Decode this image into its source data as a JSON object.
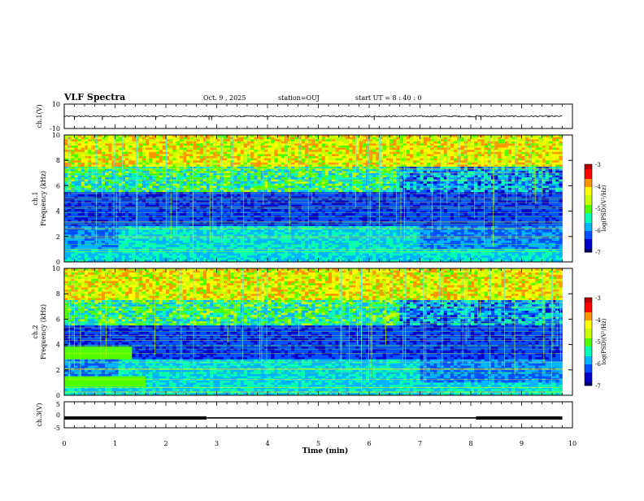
{
  "header": {
    "title": "VLF Spectra",
    "date": "Oct. 9 , 2025",
    "station": "station=OUJ",
    "start": "start UT = 8 : 40 : 0"
  },
  "colors": {
    "axis": "#000000",
    "trace": "#000000",
    "colormap": [
      "#00006e",
      "#0000c8",
      "#0050ff",
      "#00b4ff",
      "#00ffb4",
      "#50ff00",
      "#c8ff00",
      "#ffff00",
      "#ff9600",
      "#ff0000",
      "#b40000"
    ]
  },
  "chart_data": [
    {
      "type": "line",
      "name": "ch1-waveform",
      "ylabel": "ch.1(V)",
      "ylim": [
        -10,
        10
      ],
      "y_tick_labels": [
        "10",
        "-10"
      ],
      "x_range": [
        0,
        10
      ],
      "trace": {
        "baseline": 0,
        "noise_amplitude": 0.6,
        "spikes": [
          0.2,
          0.75,
          1.8,
          2.85,
          2.9,
          4.0,
          6.1,
          8.1,
          8.2
        ],
        "spike_depth": -3.0,
        "data_end": 9.8
      }
    },
    {
      "type": "heatmap",
      "name": "ch1-spectrogram",
      "ylabel": "ch.1\nFrequency (kHz)",
      "xlim": [
        0,
        10
      ],
      "ylim": [
        0,
        10
      ],
      "y_tick_labels": [
        "0",
        "2",
        "4",
        "6",
        "8",
        "10"
      ],
      "colorbar": {
        "label": "log(PSD)(V²/Hz)",
        "range": [
          -7,
          -3
        ],
        "tick_labels": [
          "-3",
          "-4",
          "-5",
          "-6",
          "-7"
        ]
      },
      "data_end_min": 9.8
    },
    {
      "type": "heatmap",
      "name": "ch2-spectrogram",
      "ylabel": "ch.2\nFrequency (kHz)",
      "xlim": [
        0,
        10
      ],
      "ylim": [
        0,
        10
      ],
      "y_tick_labels": [
        "0",
        "2",
        "4",
        "6",
        "8",
        "10"
      ],
      "colorbar": {
        "label": "log(PSD)(V²/Hz)",
        "range": [
          -7,
          -3
        ],
        "tick_labels": [
          "-3",
          "-4",
          "-5",
          "-6",
          "-7"
        ]
      },
      "data_end_min": 9.8
    },
    {
      "type": "line",
      "name": "ch3-level",
      "ylabel": "ch.3(V)",
      "ylim": [
        -5,
        5
      ],
      "y_tick_labels": [
        "5",
        "0",
        "-5"
      ],
      "segments": [
        {
          "x0": 0.0,
          "x1": 2.8,
          "y": -1.2,
          "thick": true
        },
        {
          "x0": 2.8,
          "x1": 8.1,
          "y": -1.2,
          "thick": false
        },
        {
          "x0": 8.1,
          "x1": 9.8,
          "y": -1.2,
          "thick": true
        }
      ]
    }
  ],
  "xaxis": {
    "label": "Time (min)",
    "range": [
      0,
      10
    ],
    "tick_labels": [
      "0",
      "1",
      "2",
      "3",
      "4",
      "5",
      "6",
      "7",
      "8",
      "9",
      "10"
    ]
  }
}
